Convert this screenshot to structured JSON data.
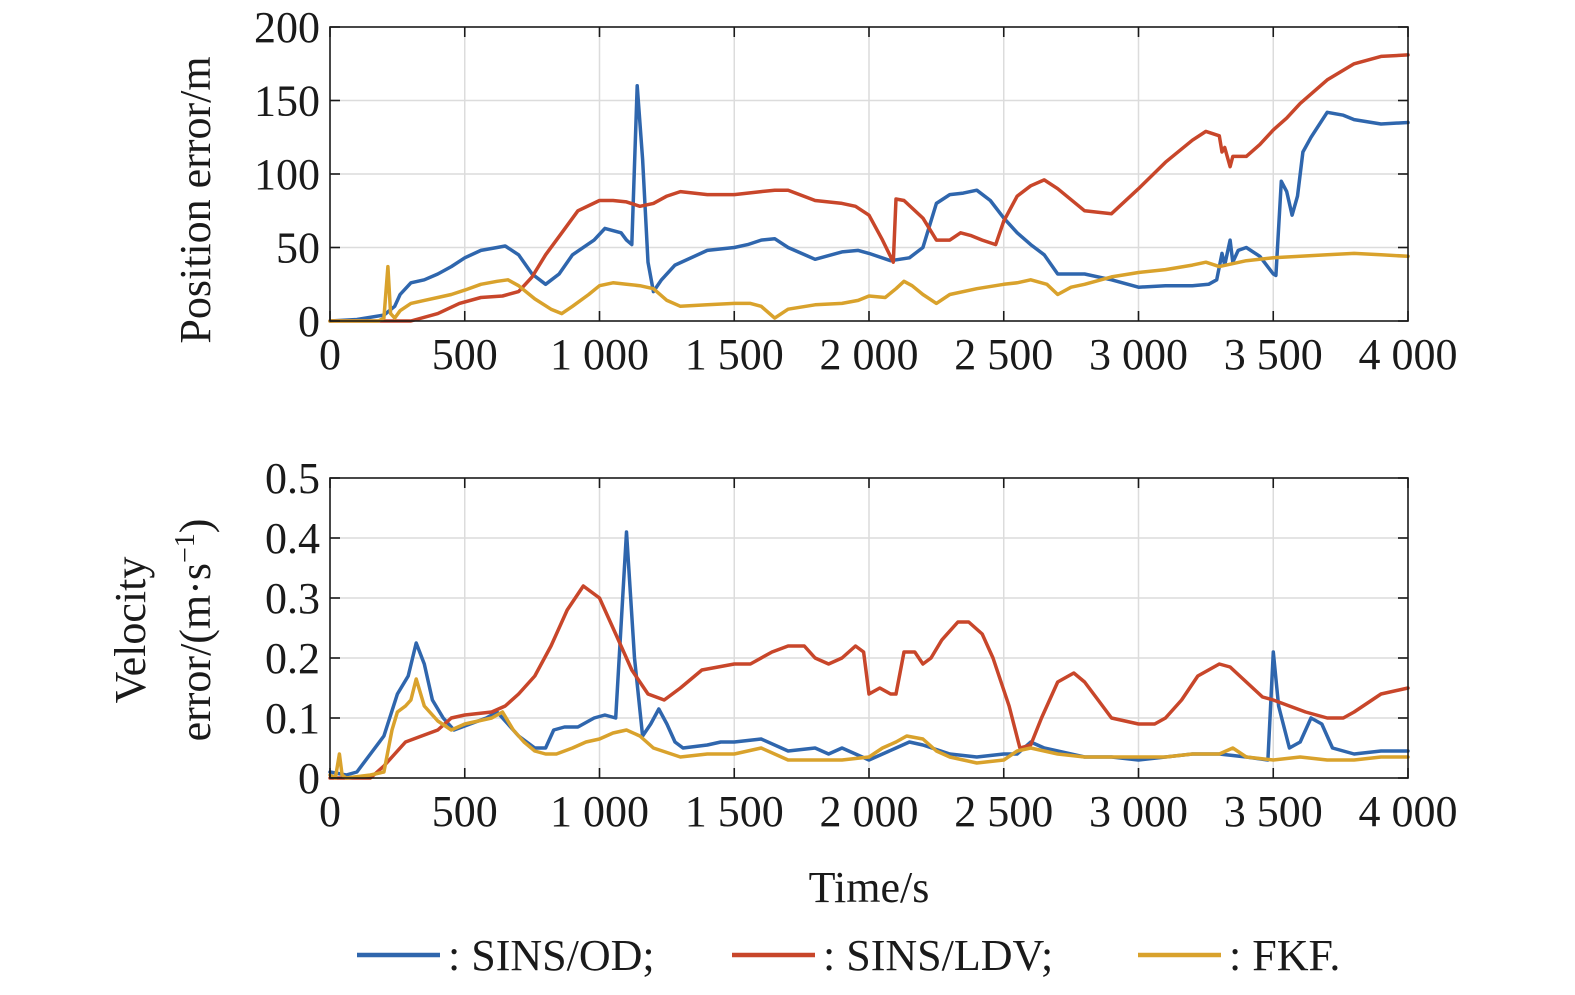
{
  "colors": {
    "SINS/OD": "#2f66ad",
    "SINS/LDV": "#c8462a",
    "FKF": "#d9a22c",
    "grid": "#dcdcdc",
    "axis": "#1a1a1a"
  },
  "chart_data": [
    {
      "type": "line",
      "ylabel": "Position error/m",
      "xlim": [
        0,
        4000
      ],
      "ylim": [
        0,
        200
      ],
      "grid": true,
      "x_ticks": [
        0,
        500,
        1000,
        1500,
        2000,
        2500,
        3000,
        3500,
        4000
      ],
      "x_tick_labels": [
        "0",
        "500",
        "1 000",
        "1 500",
        "2 000",
        "2 500",
        "3 000",
        "3 500",
        "4 000"
      ],
      "y_ticks": [
        0,
        50,
        100,
        150,
        200
      ],
      "y_tick_labels": [
        "0",
        "50",
        "100",
        "150",
        "200"
      ],
      "series": [
        {
          "name": "SINS/OD",
          "x": [
            0,
            100,
            200,
            240,
            260,
            300,
            350,
            400,
            450,
            500,
            560,
            620,
            650,
            700,
            750,
            800,
            850,
            900,
            980,
            1020,
            1080,
            1100,
            1120,
            1140,
            1160,
            1180,
            1200,
            1230,
            1280,
            1400,
            1500,
            1550,
            1600,
            1650,
            1700,
            1800,
            1900,
            1960,
            2000,
            2080,
            2150,
            2200,
            2250,
            2300,
            2350,
            2400,
            2450,
            2500,
            2550,
            2600,
            2650,
            2700,
            2800,
            2900,
            3000,
            3100,
            3200,
            3260,
            3290,
            3310,
            3320,
            3340,
            3350,
            3370,
            3400,
            3450,
            3500,
            3510,
            3530,
            3550,
            3570,
            3590,
            3610,
            3640,
            3700,
            3760,
            3800,
            3900,
            4000
          ],
          "y": [
            0,
            1,
            4,
            10,
            18,
            26,
            28,
            32,
            37,
            43,
            48,
            50,
            51,
            45,
            32,
            25,
            32,
            45,
            55,
            63,
            60,
            55,
            52,
            160,
            110,
            40,
            20,
            28,
            38,
            48,
            50,
            52,
            55,
            56,
            50,
            42,
            47,
            48,
            46,
            41,
            43,
            50,
            80,
            86,
            87,
            89,
            82,
            70,
            60,
            52,
            45,
            32,
            32,
            28,
            23,
            24,
            24,
            25,
            28,
            46,
            38,
            55,
            40,
            48,
            50,
            44,
            32,
            31,
            95,
            88,
            72,
            85,
            115,
            125,
            142,
            140,
            137,
            134,
            135
          ]
        },
        {
          "name": "SINS/LDV",
          "x": [
            0,
            200,
            300,
            400,
            480,
            560,
            640,
            700,
            750,
            800,
            860,
            920,
            1000,
            1050,
            1100,
            1150,
            1200,
            1250,
            1300,
            1400,
            1500,
            1600,
            1650,
            1700,
            1800,
            1900,
            1950,
            2000,
            2050,
            2090,
            2100,
            2130,
            2200,
            2250,
            2300,
            2340,
            2380,
            2420,
            2470,
            2500,
            2550,
            2600,
            2650,
            2700,
            2800,
            2900,
            3000,
            3100,
            3200,
            3250,
            3300,
            3310,
            3320,
            3340,
            3350,
            3400,
            3450,
            3500,
            3550,
            3600,
            3700,
            3800,
            3900,
            4000
          ],
          "y": [
            0,
            0,
            0,
            5,
            12,
            16,
            17,
            20,
            30,
            45,
            60,
            75,
            82,
            82,
            81,
            78,
            80,
            85,
            88,
            86,
            86,
            88,
            89,
            89,
            82,
            80,
            78,
            72,
            55,
            40,
            83,
            82,
            70,
            55,
            55,
            60,
            58,
            55,
            52,
            68,
            85,
            92,
            96,
            90,
            75,
            73,
            90,
            108,
            123,
            129,
            126,
            115,
            118,
            105,
            112,
            112,
            120,
            130,
            138,
            148,
            164,
            175,
            180,
            181
          ]
        },
        {
          "name": "FKF",
          "x": [
            0,
            180,
            200,
            215,
            225,
            240,
            260,
            300,
            350,
            400,
            450,
            500,
            560,
            620,
            660,
            700,
            760,
            820,
            860,
            900,
            960,
            1000,
            1050,
            1100,
            1150,
            1200,
            1250,
            1300,
            1400,
            1500,
            1560,
            1600,
            1650,
            1700,
            1800,
            1900,
            1960,
            2000,
            2060,
            2100,
            2130,
            2160,
            2200,
            2250,
            2300,
            2400,
            2500,
            2550,
            2600,
            2660,
            2700,
            2750,
            2800,
            2900,
            3000,
            3100,
            3200,
            3250,
            3300,
            3400,
            3500,
            3600,
            3700,
            3800,
            3900,
            4000
          ],
          "y": [
            0,
            0,
            2,
            37,
            5,
            2,
            7,
            12,
            14,
            16,
            18,
            21,
            25,
            27,
            28,
            24,
            15,
            8,
            5,
            10,
            18,
            24,
            26,
            25,
            24,
            22,
            14,
            10,
            11,
            12,
            12,
            10,
            2,
            8,
            11,
            12,
            14,
            17,
            16,
            22,
            27,
            24,
            18,
            12,
            18,
            22,
            25,
            26,
            28,
            25,
            18,
            23,
            25,
            30,
            33,
            35,
            38,
            40,
            37,
            41,
            43,
            44,
            45,
            46,
            45,
            44
          ]
        }
      ]
    },
    {
      "type": "line",
      "ylabel": "Velocity",
      "ylabel_line2": "error/(m·s",
      "ylabel_sup": "−1",
      "ylabel_end": ")",
      "xlabel": "Time/s",
      "xlim": [
        0,
        4000
      ],
      "ylim": [
        0,
        0.5
      ],
      "grid": true,
      "x_ticks": [
        0,
        500,
        1000,
        1500,
        2000,
        2500,
        3000,
        3500,
        4000
      ],
      "x_tick_labels": [
        "0",
        "500",
        "1 000",
        "1 500",
        "2 000",
        "2 500",
        "3 000",
        "3 500",
        "4 000"
      ],
      "y_ticks": [
        0,
        0.1,
        0.2,
        0.3,
        0.4,
        0.5
      ],
      "y_tick_labels": [
        "0",
        "0.1",
        "0.2",
        "0.3",
        "0.4",
        "0.5"
      ],
      "series": [
        {
          "name": "SINS/OD",
          "x": [
            0,
            60,
            100,
            150,
            200,
            250,
            290,
            320,
            350,
            380,
            420,
            460,
            520,
            580,
            620,
            660,
            700,
            760,
            800,
            830,
            870,
            920,
            980,
            1020,
            1060,
            1100,
            1130,
            1160,
            1190,
            1220,
            1250,
            1280,
            1310,
            1400,
            1450,
            1500,
            1600,
            1700,
            1800,
            1850,
            1900,
            1950,
            2000,
            2100,
            2150,
            2200,
            2300,
            2400,
            2500,
            2550,
            2600,
            2650,
            2700,
            2800,
            2900,
            3000,
            3100,
            3200,
            3300,
            3400,
            3480,
            3500,
            3520,
            3560,
            3600,
            3640,
            3680,
            3720,
            3800,
            3900,
            4000
          ],
          "y": [
            0.01,
            0.005,
            0.01,
            0.04,
            0.07,
            0.14,
            0.17,
            0.225,
            0.19,
            0.13,
            0.1,
            0.08,
            0.09,
            0.1,
            0.11,
            0.09,
            0.07,
            0.05,
            0.05,
            0.08,
            0.085,
            0.085,
            0.1,
            0.105,
            0.1,
            0.41,
            0.2,
            0.07,
            0.09,
            0.115,
            0.09,
            0.06,
            0.05,
            0.055,
            0.06,
            0.06,
            0.065,
            0.045,
            0.05,
            0.04,
            0.05,
            0.04,
            0.03,
            0.05,
            0.06,
            0.055,
            0.04,
            0.035,
            0.04,
            0.04,
            0.06,
            0.05,
            0.045,
            0.035,
            0.035,
            0.03,
            0.035,
            0.04,
            0.04,
            0.035,
            0.03,
            0.21,
            0.12,
            0.05,
            0.06,
            0.1,
            0.09,
            0.05,
            0.04,
            0.045,
            0.045
          ]
        },
        {
          "name": "SINS/LDV",
          "x": [
            0,
            150,
            200,
            240,
            280,
            340,
            400,
            450,
            500,
            600,
            650,
            700,
            760,
            820,
            880,
            940,
            1000,
            1060,
            1120,
            1180,
            1240,
            1300,
            1380,
            1500,
            1560,
            1640,
            1700,
            1760,
            1800,
            1850,
            1900,
            1950,
            1980,
            2000,
            2040,
            2080,
            2100,
            2130,
            2170,
            2200,
            2230,
            2270,
            2330,
            2370,
            2420,
            2460,
            2520,
            2560,
            2600,
            2640,
            2700,
            2760,
            2800,
            2850,
            2900,
            3000,
            3060,
            3100,
            3160,
            3220,
            3300,
            3340,
            3400,
            3460,
            3500,
            3560,
            3620,
            3700,
            3760,
            3800,
            3900,
            4000
          ],
          "y": [
            0,
            0,
            0.02,
            0.04,
            0.06,
            0.07,
            0.08,
            0.1,
            0.105,
            0.11,
            0.12,
            0.14,
            0.17,
            0.22,
            0.28,
            0.32,
            0.3,
            0.24,
            0.18,
            0.14,
            0.13,
            0.15,
            0.18,
            0.19,
            0.19,
            0.21,
            0.22,
            0.22,
            0.2,
            0.19,
            0.2,
            0.22,
            0.21,
            0.14,
            0.15,
            0.14,
            0.14,
            0.21,
            0.21,
            0.19,
            0.2,
            0.23,
            0.26,
            0.26,
            0.24,
            0.2,
            0.12,
            0.05,
            0.055,
            0.1,
            0.16,
            0.175,
            0.16,
            0.13,
            0.1,
            0.09,
            0.09,
            0.1,
            0.13,
            0.17,
            0.19,
            0.185,
            0.16,
            0.135,
            0.13,
            0.12,
            0.11,
            0.1,
            0.1,
            0.11,
            0.14,
            0.15
          ]
        },
        {
          "name": "FKF",
          "x": [
            0,
            20,
            35,
            45,
            60,
            150,
            200,
            230,
            250,
            280,
            300,
            320,
            350,
            400,
            450,
            500,
            550,
            600,
            640,
            680,
            720,
            760,
            800,
            840,
            900,
            950,
            1000,
            1050,
            1100,
            1150,
            1200,
            1300,
            1400,
            1500,
            1600,
            1700,
            1800,
            1900,
            2000,
            2050,
            2100,
            2140,
            2200,
            2250,
            2300,
            2350,
            2400,
            2500,
            2550,
            2600,
            2700,
            2800,
            2900,
            3000,
            3100,
            3200,
            3300,
            3350,
            3400,
            3500,
            3600,
            3700,
            3800,
            3900,
            4000
          ],
          "y": [
            0.005,
            0,
            0.04,
            0.005,
            0,
            0.005,
            0.01,
            0.08,
            0.11,
            0.12,
            0.13,
            0.165,
            0.12,
            0.095,
            0.08,
            0.09,
            0.095,
            0.1,
            0.11,
            0.08,
            0.06,
            0.045,
            0.04,
            0.04,
            0.05,
            0.06,
            0.065,
            0.075,
            0.08,
            0.07,
            0.05,
            0.035,
            0.04,
            0.04,
            0.05,
            0.03,
            0.03,
            0.03,
            0.035,
            0.05,
            0.06,
            0.07,
            0.065,
            0.045,
            0.035,
            0.03,
            0.025,
            0.03,
            0.045,
            0.05,
            0.04,
            0.035,
            0.035,
            0.035,
            0.035,
            0.04,
            0.04,
            0.05,
            0.035,
            0.03,
            0.035,
            0.03,
            0.03,
            0.035,
            0.035
          ]
        }
      ]
    }
  ],
  "legend": {
    "items": [
      {
        "series": "SINS/OD",
        "label": ": SINS/OD;"
      },
      {
        "series": "SINS/LDV",
        "label": ": SINS/LDV;"
      },
      {
        "series": "FKF",
        "label": ": FKF."
      }
    ]
  }
}
